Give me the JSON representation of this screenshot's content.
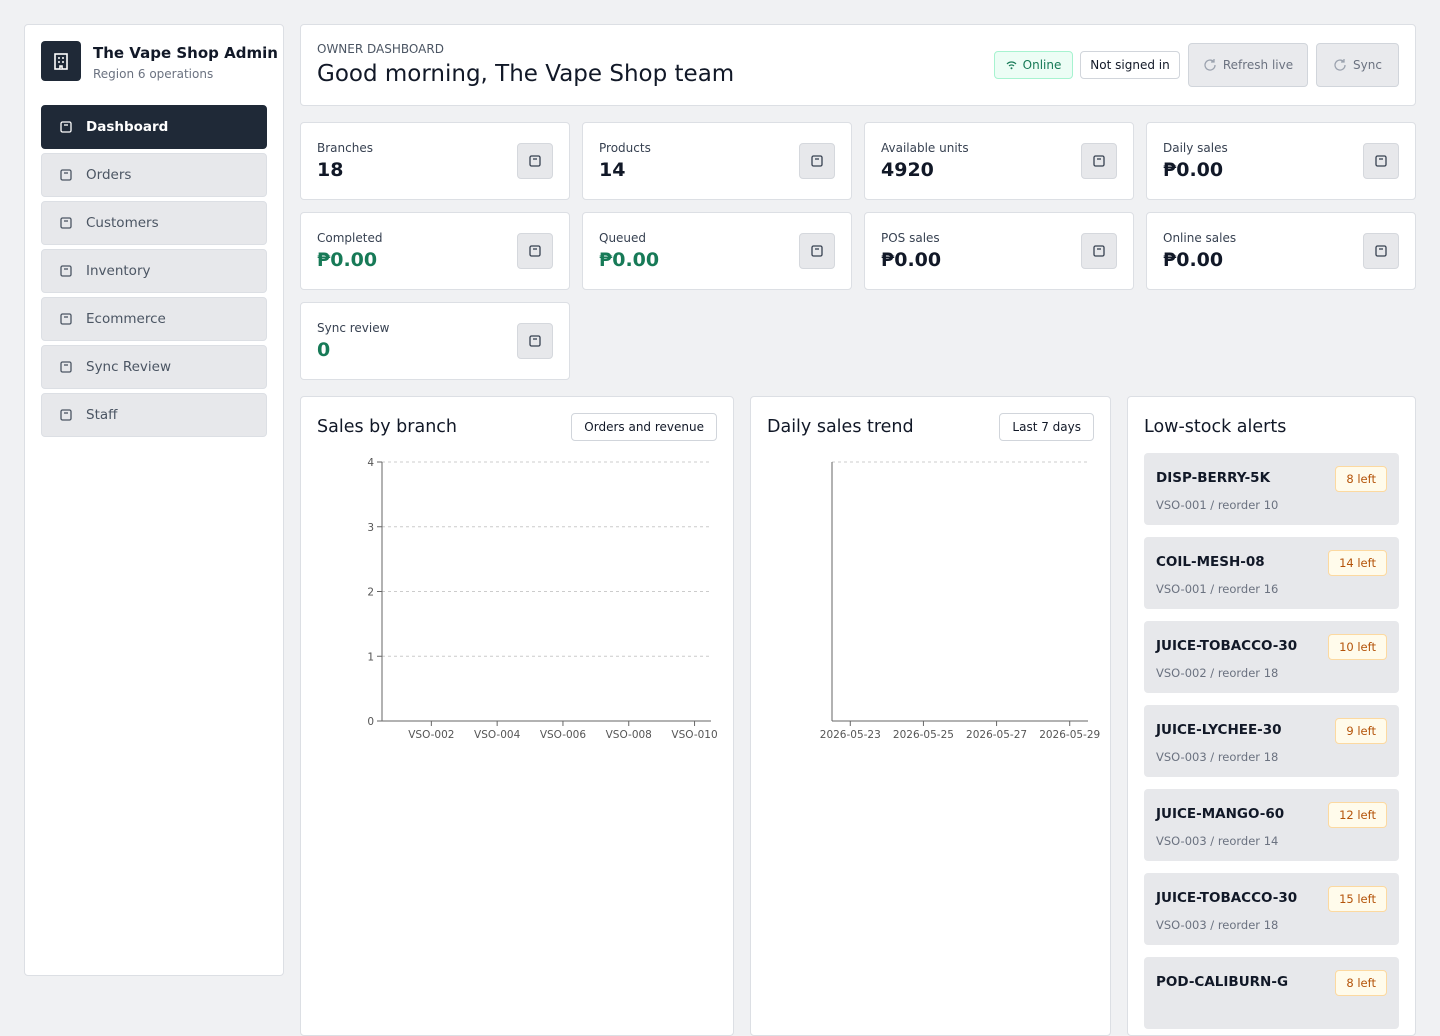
{
  "sidebar": {
    "brand_title": "The Vape Shop Admin",
    "brand_subtitle": "Region 6 operations",
    "active": 0,
    "nav": [
      "Dashboard",
      "Orders",
      "Customers",
      "Inventory",
      "Ecommerce",
      "Sync Review",
      "Staff"
    ]
  },
  "header": {
    "eyebrow": "OWNER DASHBOARD",
    "title": "Good morning, The Vape Shop team",
    "online": "Online",
    "auth": "Not signed in",
    "refresh": "Refresh live",
    "sync": "Sync"
  },
  "stats": [
    {
      "label": "Branches",
      "value": 18
    },
    {
      "label": "Products",
      "value": 14
    },
    {
      "label": "Available units",
      "value": 4920
    },
    {
      "label": "Daily sales",
      "value": "₱0.00"
    },
    {
      "label": "Completed",
      "value": "₱0.00",
      "color": "#177a57"
    },
    {
      "label": "Queued",
      "value": "₱0.00",
      "color": "#177a57"
    },
    {
      "label": "POS sales",
      "value": "₱0.00"
    },
    {
      "label": "Online sales",
      "value": "₱0.00"
    },
    {
      "label": "Sync review",
      "value": 0,
      "color": "#177a57"
    }
  ],
  "charts": [
    {
      "type": "bar",
      "title": "Sales by branch",
      "button": "Orders and revenue",
      "categories": [
        null,
        "VSO-002",
        null,
        "VSO-004",
        null,
        "VSO-006",
        null,
        "VSO-008",
        null,
        "VSO-010"
      ],
      "ylim": [
        0,
        4
      ],
      "yticks": [
        0,
        1,
        2,
        3,
        4
      ],
      "grid": true
    },
    {
      "type": "line",
      "title": "Daily sales trend",
      "button": "Last 7 days",
      "categories": [
        "2026-05-23",
        null,
        "2026-05-25",
        null,
        "2026-05-27",
        null,
        "2026-05-29"
      ]
    }
  ],
  "alerts": {
    "title": "Low-stock alerts",
    "items": [
      {
        "sku": "DISP-BERRY-5K",
        "meta": "VSO-001 / reorder 10",
        "left": "8 left"
      },
      {
        "sku": "COIL-MESH-08",
        "meta": "VSO-001 / reorder 16",
        "left": "14 left"
      },
      {
        "sku": "JUICE-TOBACCO-30",
        "meta": "VSO-002 / reorder 18",
        "left": "10 left"
      },
      {
        "sku": "JUICE-LYCHEE-30",
        "meta": "VSO-003 / reorder 18",
        "left": "9 left"
      },
      {
        "sku": "JUICE-MANGO-60",
        "meta": "VSO-003 / reorder 14",
        "left": "12 left"
      },
      {
        "sku": "JUICE-TOBACCO-30",
        "meta": "VSO-003 / reorder 18",
        "left": "15 left"
      },
      {
        "sku": "POD-CALIBURN-G",
        "meta": "",
        "left": "8 left"
      }
    ]
  }
}
